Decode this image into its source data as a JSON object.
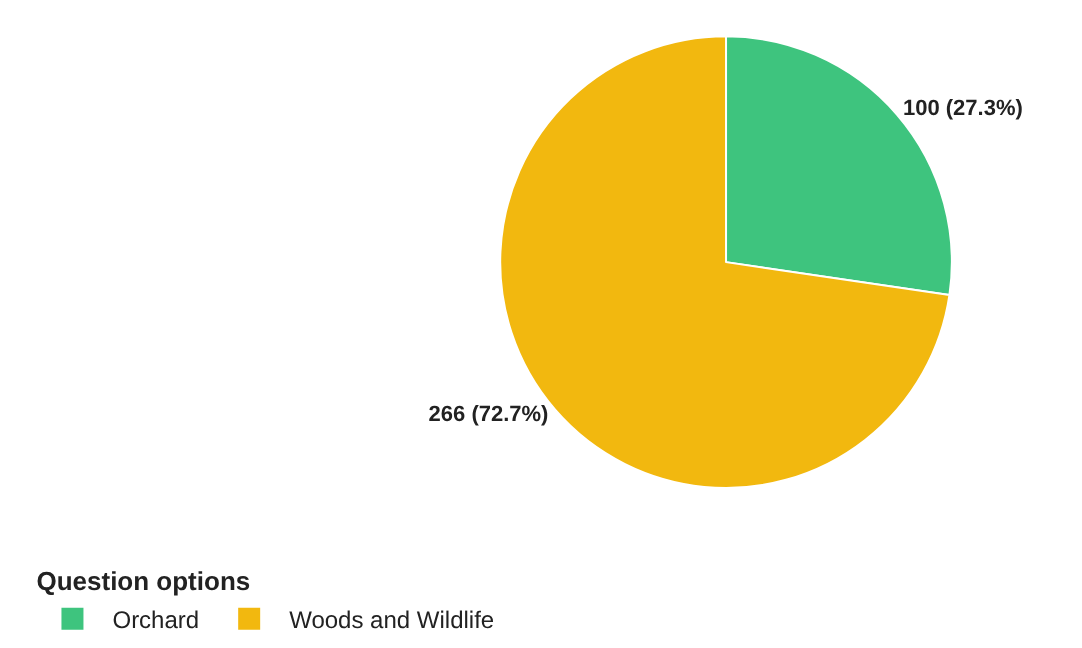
{
  "chart_data": {
    "type": "pie",
    "legend_title": "Question options",
    "legend": "bottom left",
    "categories": [
      "Orchard",
      "Woods and Wildlife"
    ],
    "values": [
      100,
      266
    ],
    "colors": [
      "#3ec47e",
      "#f2b80f"
    ],
    "value_labels": [
      "100 (27.3%)",
      "266 (72.7%)"
    ]
  }
}
